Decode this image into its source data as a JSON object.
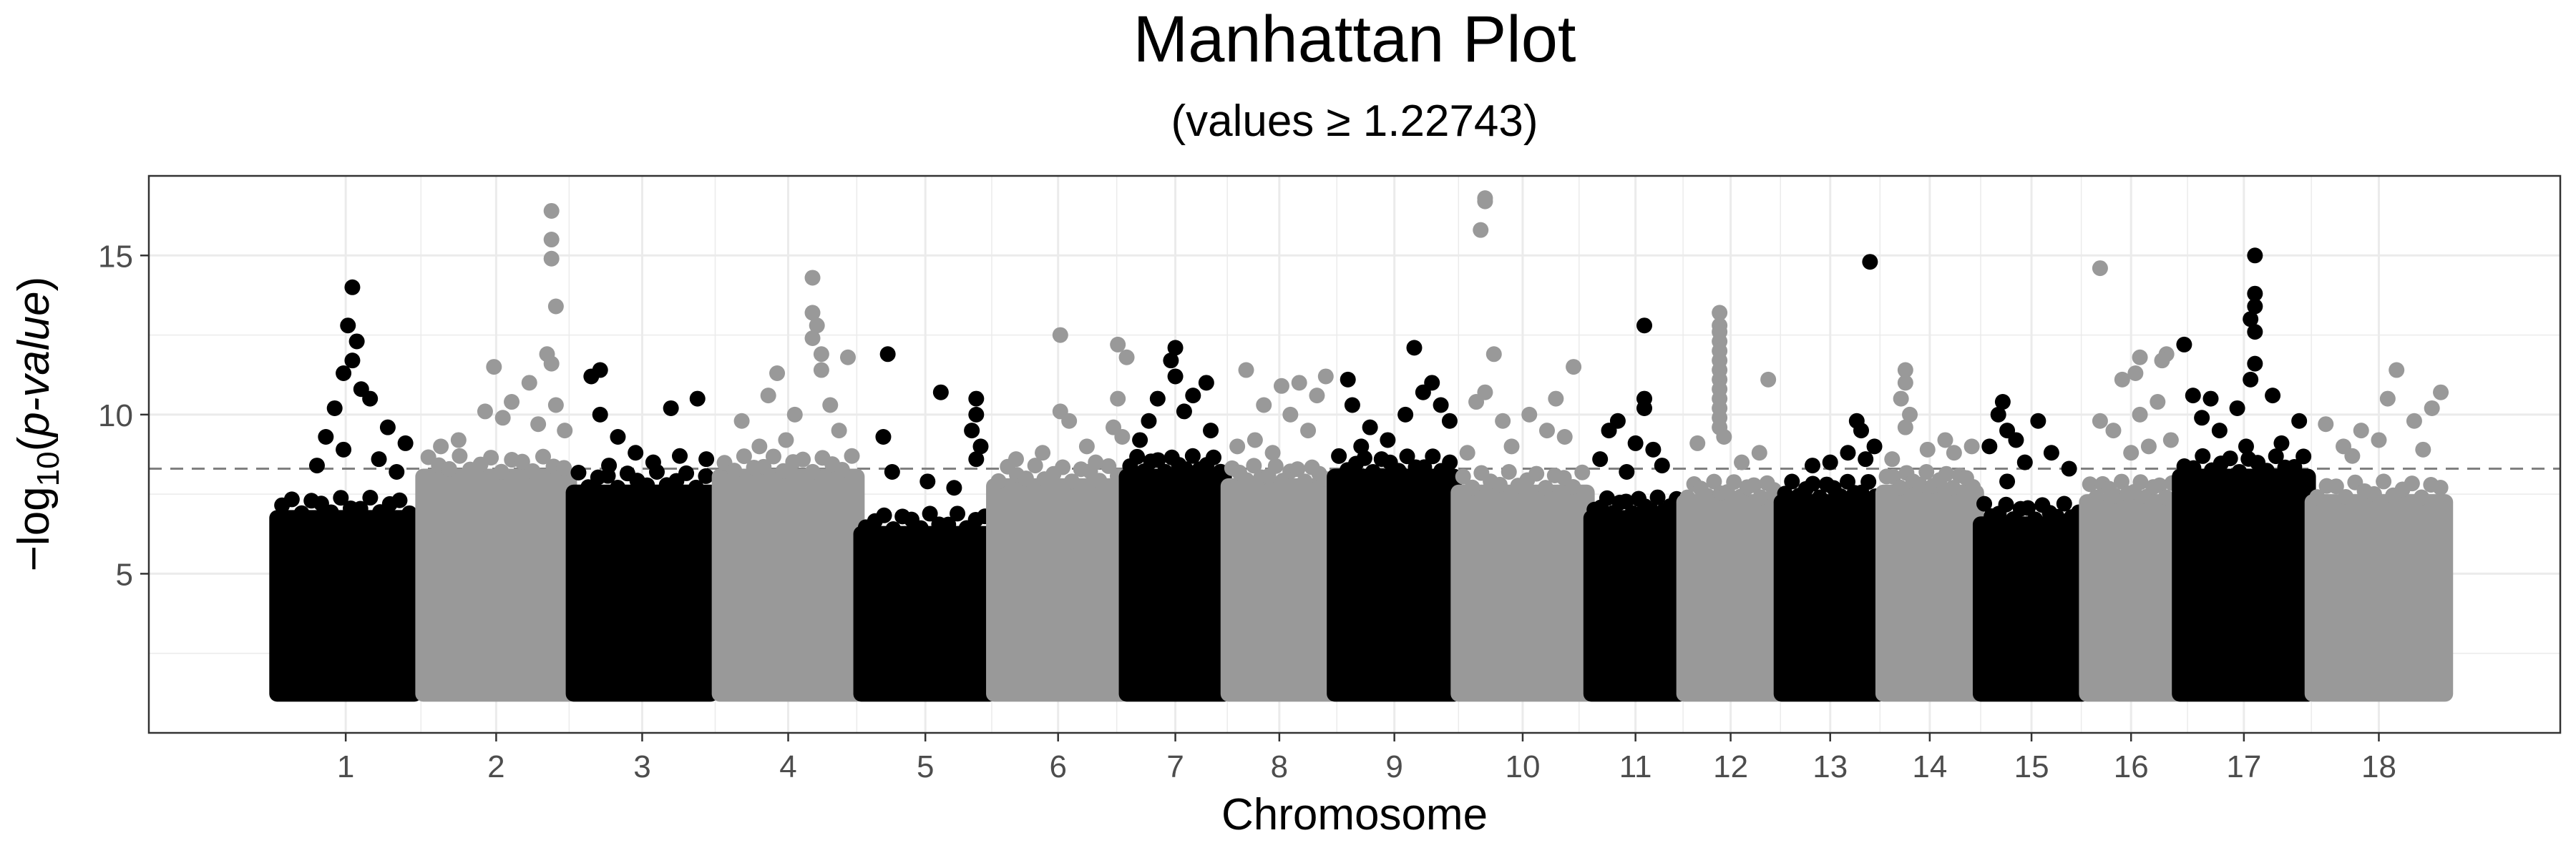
{
  "chart_data": {
    "type": "scatter",
    "title": "Manhattan Plot",
    "subtitle": "(values ≥ 1.22743)",
    "xlabel": "Chromosome",
    "ylabel_prefix": "−log",
    "ylabel_sub": "10",
    "ylabel_open": "(",
    "ylabel_italic": "p-value",
    "ylabel_close": ")",
    "ylim": [
      0,
      17.5
    ],
    "yticks": [
      5,
      10,
      15
    ],
    "threshold": 8.3,
    "min_value": 1.22743,
    "grid": true,
    "colors": {
      "odd": "#000000",
      "even": "#999999",
      "threshold": "#808080",
      "grid": "#ebebeb"
    },
    "chromosomes": [
      {
        "label": "1",
        "start": 1.45,
        "end": 3.0,
        "dense_max": 7.0,
        "points": [
          [
            2.3,
            14.0
          ],
          [
            2.25,
            12.8
          ],
          [
            2.35,
            12.3
          ],
          [
            2.3,
            11.7
          ],
          [
            2.2,
            11.3
          ],
          [
            2.4,
            10.8
          ],
          [
            2.5,
            10.5
          ],
          [
            2.1,
            10.2
          ],
          [
            2.7,
            9.6
          ],
          [
            2.0,
            9.3
          ],
          [
            2.9,
            9.1
          ],
          [
            2.2,
            8.9
          ],
          [
            2.6,
            8.6
          ],
          [
            1.9,
            8.4
          ],
          [
            2.8,
            8.2
          ]
        ]
      },
      {
        "label": "2",
        "start": 3.1,
        "end": 4.75,
        "dense_max": 8.3,
        "points": [
          [
            4.55,
            16.4
          ],
          [
            4.55,
            15.5
          ],
          [
            4.55,
            14.9
          ],
          [
            4.6,
            13.4
          ],
          [
            4.5,
            11.9
          ],
          [
            4.55,
            11.6
          ],
          [
            3.9,
            11.5
          ],
          [
            4.3,
            11.0
          ],
          [
            4.1,
            10.4
          ],
          [
            4.6,
            10.3
          ],
          [
            3.8,
            10.1
          ],
          [
            4.0,
            9.9
          ],
          [
            4.4,
            9.7
          ],
          [
            4.7,
            9.5
          ],
          [
            3.5,
            9.2
          ],
          [
            3.3,
            9.0
          ]
        ]
      },
      {
        "label": "3",
        "start": 4.8,
        "end": 6.35,
        "dense_max": 7.8,
        "points": [
          [
            5.1,
            11.4
          ],
          [
            5.0,
            11.2
          ],
          [
            6.2,
            10.5
          ],
          [
            5.9,
            10.2
          ],
          [
            5.1,
            10.0
          ],
          [
            5.3,
            9.3
          ],
          [
            5.5,
            8.8
          ],
          [
            6.0,
            8.7
          ],
          [
            5.7,
            8.5
          ],
          [
            5.2,
            8.4
          ],
          [
            6.3,
            8.6
          ]
        ]
      },
      {
        "label": "4",
        "start": 6.45,
        "end": 8.0,
        "dense_max": 8.3,
        "points": [
          [
            7.5,
            14.3
          ],
          [
            7.5,
            13.2
          ],
          [
            7.55,
            12.8
          ],
          [
            7.5,
            12.4
          ],
          [
            7.6,
            11.9
          ],
          [
            7.9,
            11.8
          ],
          [
            7.6,
            11.4
          ],
          [
            7.1,
            11.3
          ],
          [
            7.0,
            10.6
          ],
          [
            7.7,
            10.3
          ],
          [
            7.3,
            10.0
          ],
          [
            6.7,
            9.8
          ],
          [
            7.8,
            9.5
          ],
          [
            7.2,
            9.2
          ],
          [
            6.9,
            9.0
          ]
        ]
      },
      {
        "label": "5",
        "start": 8.05,
        "end": 9.5,
        "dense_max": 6.5,
        "points": [
          [
            8.35,
            11.9
          ],
          [
            8.95,
            10.7
          ],
          [
            9.35,
            10.5
          ],
          [
            9.35,
            10.0
          ],
          [
            9.3,
            9.5
          ],
          [
            8.3,
            9.3
          ],
          [
            9.4,
            9.0
          ],
          [
            9.35,
            8.6
          ],
          [
            8.4,
            8.2
          ],
          [
            8.8,
            7.9
          ],
          [
            9.1,
            7.7
          ]
        ]
      },
      {
        "label": "6",
        "start": 9.55,
        "end": 11.0,
        "dense_max": 8.0,
        "points": [
          [
            10.3,
            12.5
          ],
          [
            10.95,
            12.2
          ],
          [
            11.05,
            11.8
          ],
          [
            10.95,
            10.5
          ],
          [
            10.3,
            10.1
          ],
          [
            10.4,
            9.8
          ],
          [
            10.9,
            9.6
          ],
          [
            11.0,
            9.3
          ],
          [
            10.6,
            9.0
          ],
          [
            10.1,
            8.8
          ],
          [
            9.8,
            8.6
          ],
          [
            10.7,
            8.5
          ]
        ]
      },
      {
        "label": "7",
        "start": 11.05,
        "end": 12.15,
        "dense_max": 8.3,
        "points": [
          [
            11.6,
            12.1
          ],
          [
            11.55,
            11.7
          ],
          [
            11.6,
            11.2
          ],
          [
            11.95,
            11.0
          ],
          [
            11.8,
            10.6
          ],
          [
            11.4,
            10.5
          ],
          [
            11.7,
            10.1
          ],
          [
            11.3,
            9.8
          ],
          [
            12.0,
            9.5
          ],
          [
            11.2,
            9.2
          ]
        ]
      },
      {
        "label": "8",
        "start": 12.2,
        "end": 13.35,
        "dense_max": 8.0,
        "points": [
          [
            12.4,
            11.4
          ],
          [
            13.3,
            11.2
          ],
          [
            13.0,
            11.0
          ],
          [
            12.8,
            10.9
          ],
          [
            13.2,
            10.6
          ],
          [
            12.6,
            10.3
          ],
          [
            12.9,
            10.0
          ],
          [
            13.1,
            9.5
          ],
          [
            12.5,
            9.2
          ],
          [
            12.3,
            9.0
          ],
          [
            12.7,
            8.8
          ]
        ]
      },
      {
        "label": "9",
        "start": 13.4,
        "end": 14.75,
        "dense_max": 8.3,
        "points": [
          [
            14.3,
            12.1
          ],
          [
            13.55,
            11.1
          ],
          [
            14.5,
            11.0
          ],
          [
            14.4,
            10.7
          ],
          [
            14.6,
            10.3
          ],
          [
            13.6,
            10.3
          ],
          [
            14.2,
            10.0
          ],
          [
            14.7,
            9.8
          ],
          [
            13.8,
            9.6
          ],
          [
            14.0,
            9.2
          ],
          [
            13.7,
            9.0
          ]
        ]
      },
      {
        "label": "10",
        "start": 14.8,
        "end": 16.25,
        "dense_max": 7.8,
        "points": [
          [
            15.1,
            16.8
          ],
          [
            15.1,
            16.7
          ],
          [
            15.05,
            15.8
          ],
          [
            15.2,
            11.9
          ],
          [
            16.1,
            11.5
          ],
          [
            15.1,
            10.7
          ],
          [
            15.0,
            10.4
          ],
          [
            15.9,
            10.5
          ],
          [
            15.6,
            10.0
          ],
          [
            15.3,
            9.8
          ],
          [
            15.8,
            9.5
          ],
          [
            16.0,
            9.3
          ],
          [
            15.4,
            9.0
          ],
          [
            14.9,
            8.8
          ]
        ]
      },
      {
        "label": "11",
        "start": 16.3,
        "end": 17.3,
        "dense_max": 7.0,
        "points": [
          [
            16.9,
            12.8
          ],
          [
            16.9,
            10.5
          ],
          [
            16.9,
            10.2
          ],
          [
            16.6,
            9.8
          ],
          [
            16.5,
            9.5
          ],
          [
            16.8,
            9.1
          ],
          [
            17.0,
            8.9
          ],
          [
            16.4,
            8.6
          ],
          [
            17.1,
            8.4
          ],
          [
            16.7,
            8.2
          ]
        ]
      },
      {
        "label": "12",
        "start": 17.35,
        "end": 18.4,
        "dense_max": 7.5,
        "points": [
          [
            17.75,
            13.2
          ],
          [
            17.75,
            12.8
          ],
          [
            17.75,
            12.6
          ],
          [
            17.75,
            12.3
          ],
          [
            17.75,
            12.0
          ],
          [
            17.75,
            11.7
          ],
          [
            17.75,
            11.4
          ],
          [
            17.75,
            11.1
          ],
          [
            18.3,
            11.1
          ],
          [
            17.75,
            10.8
          ],
          [
            17.75,
            10.5
          ],
          [
            17.75,
            10.2
          ],
          [
            17.75,
            9.9
          ],
          [
            17.75,
            9.6
          ],
          [
            17.8,
            9.3
          ],
          [
            17.5,
            9.1
          ],
          [
            18.2,
            8.8
          ],
          [
            18.0,
            8.5
          ]
        ]
      },
      {
        "label": "13",
        "start": 18.45,
        "end": 19.55,
        "dense_max": 7.5,
        "points": [
          [
            19.45,
            14.8
          ],
          [
            19.5,
            9.0
          ],
          [
            19.3,
            9.8
          ],
          [
            19.35,
            9.5
          ],
          [
            19.2,
            8.8
          ],
          [
            19.0,
            8.5
          ],
          [
            18.8,
            8.4
          ],
          [
            19.4,
            8.6
          ]
        ]
      },
      {
        "label": "14",
        "start": 19.6,
        "end": 20.65,
        "dense_max": 7.8,
        "points": [
          [
            19.85,
            11.4
          ],
          [
            19.85,
            11.0
          ],
          [
            19.8,
            10.5
          ],
          [
            19.9,
            10.0
          ],
          [
            19.85,
            9.6
          ],
          [
            20.3,
            9.2
          ],
          [
            20.6,
            9.0
          ],
          [
            20.1,
            8.9
          ],
          [
            20.4,
            8.8
          ],
          [
            19.7,
            8.6
          ]
        ]
      },
      {
        "label": "15",
        "start": 20.7,
        "end": 21.85,
        "dense_max": 6.8,
        "points": [
          [
            20.95,
            10.4
          ],
          [
            20.9,
            10.0
          ],
          [
            21.35,
            9.8
          ],
          [
            21.0,
            9.5
          ],
          [
            21.1,
            9.2
          ],
          [
            20.8,
            9.0
          ],
          [
            21.5,
            8.8
          ],
          [
            21.2,
            8.5
          ],
          [
            21.7,
            8.3
          ],
          [
            21.0,
            7.9
          ]
        ]
      },
      {
        "label": "16",
        "start": 21.9,
        "end": 22.9,
        "dense_max": 7.5,
        "points": [
          [
            22.05,
            14.6
          ],
          [
            22.5,
            11.8
          ],
          [
            22.8,
            11.9
          ],
          [
            22.75,
            11.7
          ],
          [
            22.45,
            11.3
          ],
          [
            22.3,
            11.1
          ],
          [
            22.7,
            10.4
          ],
          [
            22.5,
            10.0
          ],
          [
            22.05,
            9.8
          ],
          [
            22.2,
            9.5
          ],
          [
            22.85,
            9.2
          ],
          [
            22.6,
            9.0
          ],
          [
            22.4,
            8.8
          ]
        ]
      },
      {
        "label": "17",
        "start": 22.95,
        "end": 24.4,
        "dense_max": 8.3,
        "points": [
          [
            23.8,
            15.0
          ],
          [
            23.8,
            13.8
          ],
          [
            23.8,
            13.4
          ],
          [
            23.75,
            13.0
          ],
          [
            23.8,
            12.6
          ],
          [
            23.0,
            12.2
          ],
          [
            23.8,
            11.6
          ],
          [
            23.75,
            11.1
          ],
          [
            23.1,
            10.6
          ],
          [
            23.3,
            10.5
          ],
          [
            24.0,
            10.6
          ],
          [
            23.6,
            10.2
          ],
          [
            23.2,
            9.9
          ],
          [
            24.3,
            9.8
          ],
          [
            23.4,
            9.5
          ],
          [
            24.1,
            9.1
          ],
          [
            23.7,
            9.0
          ]
        ]
      },
      {
        "label": "18",
        "start": 24.45,
        "end": 25.95,
        "dense_max": 7.5,
        "points": [
          [
            25.4,
            11.4
          ],
          [
            25.9,
            10.7
          ],
          [
            25.8,
            10.2
          ],
          [
            25.3,
            10.5
          ],
          [
            25.6,
            9.8
          ],
          [
            24.6,
            9.7
          ],
          [
            25.0,
            9.5
          ],
          [
            25.2,
            9.2
          ],
          [
            24.8,
            9.0
          ],
          [
            25.7,
            8.9
          ],
          [
            24.9,
            8.7
          ]
        ]
      }
    ]
  }
}
